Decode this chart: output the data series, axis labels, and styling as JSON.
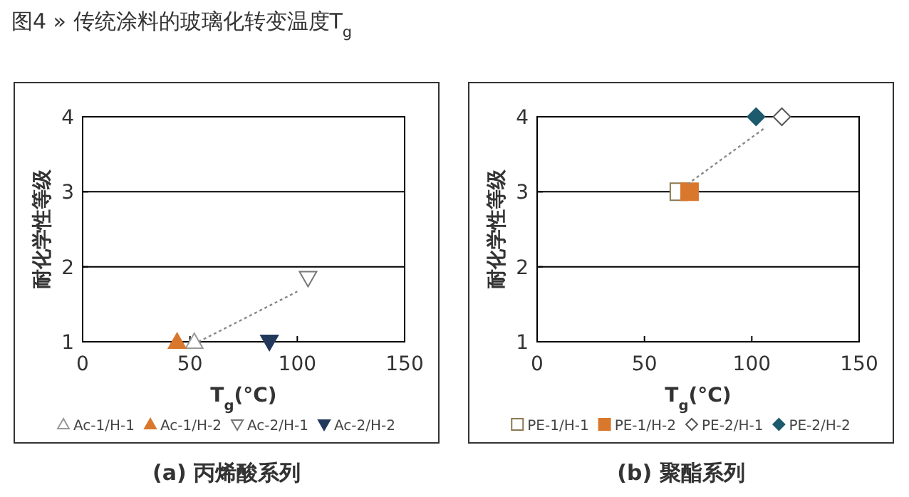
{
  "chart_data": [
    {
      "type": "scatter",
      "title": "图4 » 传统涂料的玻璃化转变温度T$_{g}$",
      "xlabel": "T$_{g}$(°C)",
      "ylabel": "耐化学性等级",
      "annotations": [
        "(a) 丙烯酸系列"
      ],
      "xlim": [
        0,
        150
      ],
      "xticks": [
        0,
        50,
        100,
        150
      ],
      "ylim": [
        1,
        4
      ],
      "yticks": [
        1,
        2,
        3,
        4
      ],
      "grid": "y",
      "legend": "bottom",
      "series": [
        {
          "name": "Ac-1/H-1",
          "color": "#999999",
          "marker": "triangle-open",
          "x": [
            52
          ],
          "values": [
            1
          ]
        },
        {
          "name": "Ac-1/H-2",
          "color": "#d9782d",
          "marker": "triangle",
          "x": [
            44
          ],
          "values": [
            1
          ]
        },
        {
          "name": "Ac-2/H-1",
          "color": "#777777",
          "marker": "triangle-down-open",
          "x": [
            105
          ],
          "values": [
            1.85
          ]
        },
        {
          "name": "Ac-2/H-2",
          "color": "#22395c",
          "marker": "triangle-down",
          "x": [
            87
          ],
          "values": [
            1
          ]
        },
        {
          "type": "line",
          "color": "#888888",
          "line_style": "dotted",
          "marker": "none",
          "x": [
            54,
            100
          ],
          "values": [
            1,
            1.67
          ]
        }
      ]
    },
    {
      "type": "scatter",
      "xlabel": "T$_{g}$(°C)",
      "ylabel": "耐化学性等级",
      "annotations": [
        "(b) 聚酯系列"
      ],
      "xlim": [
        0,
        150
      ],
      "xticks": [
        0,
        50,
        100,
        150
      ],
      "ylim": [
        1,
        4
      ],
      "yticks": [
        1,
        2,
        3,
        4
      ],
      "grid": "y",
      "legend": "bottom",
      "series": [
        {
          "name": "PE-1/H-1",
          "color": "#8a7a50",
          "marker": "square-open",
          "x": [
            66
          ],
          "values": [
            3
          ]
        },
        {
          "name": "PE-1/H-2",
          "color": "#d9782d",
          "marker": "square",
          "x": [
            71
          ],
          "values": [
            3
          ]
        },
        {
          "name": "PE-2/H-1",
          "color": "#555555",
          "marker": "diamond-open",
          "x": [
            114
          ],
          "values": [
            4
          ]
        },
        {
          "name": "PE-2/H-2",
          "color": "#1d5a6e",
          "marker": "diamond",
          "x": [
            102
          ],
          "values": [
            4
          ]
        },
        {
          "type": "line",
          "color": "#888888",
          "line_style": "dotted",
          "marker": "none",
          "x": [
            70,
            106
          ],
          "values": [
            3.1,
            3.85
          ]
        }
      ]
    }
  ]
}
